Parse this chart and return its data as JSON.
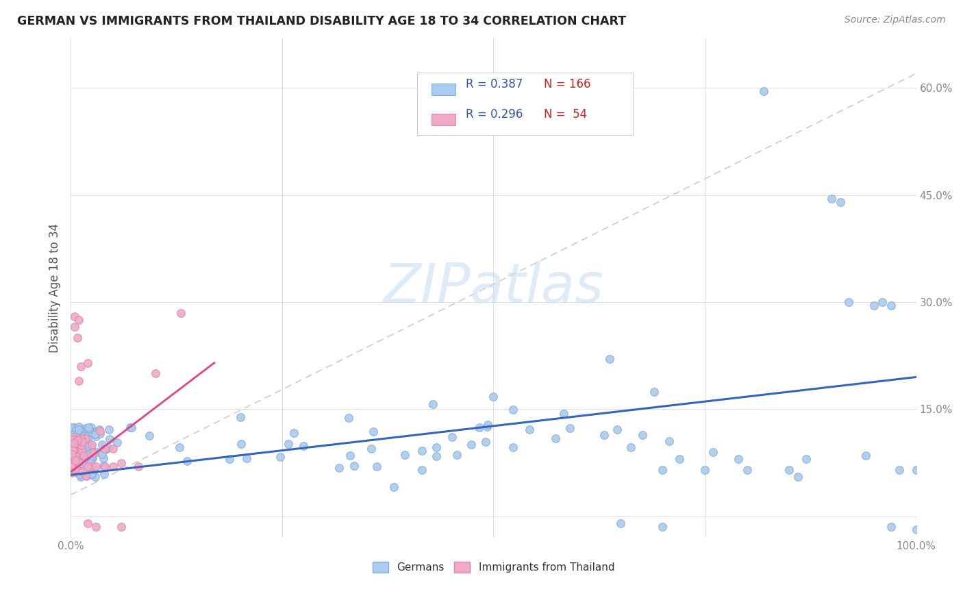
{
  "title": "GERMAN VS IMMIGRANTS FROM THAILAND DISABILITY AGE 18 TO 34 CORRELATION CHART",
  "source": "Source: ZipAtlas.com",
  "ylabel": "Disability Age 18 to 34",
  "xlim": [
    0,
    1.0
  ],
  "ylim": [
    -0.03,
    0.67
  ],
  "yticks": [
    0.0,
    0.15,
    0.3,
    0.45,
    0.6
  ],
  "ytick_labels": [
    "",
    "15.0%",
    "30.0%",
    "45.0%",
    "60.0%"
  ],
  "xtick_vals": [
    0.0,
    0.25,
    0.5,
    0.75,
    1.0
  ],
  "xtick_labels": [
    "0.0%",
    "",
    "",
    "",
    "100.0%"
  ],
  "watermark": "ZIPatlas",
  "blue_color": "#aaccee",
  "pink_color": "#f0aac8",
  "blue_edge": "#88aadd",
  "pink_edge": "#dd88aa",
  "blue_line_color": "#3366bb",
  "pink_line_color": "#dd4488",
  "diag_line_color": "#cccccc",
  "background_color": "#ffffff",
  "grid_color": "#dddddd",
  "title_color": "#222222",
  "tick_color": "#888888",
  "legend_r_color": "#3355aa",
  "legend_n_color": "#cc2222",
  "blue_trend": [
    0.0,
    1.0,
    0.058,
    0.195
  ],
  "pink_trend": [
    0.0,
    0.17,
    0.062,
    0.215
  ],
  "diag_trend": [
    0.0,
    1.0,
    0.03,
    0.62
  ]
}
